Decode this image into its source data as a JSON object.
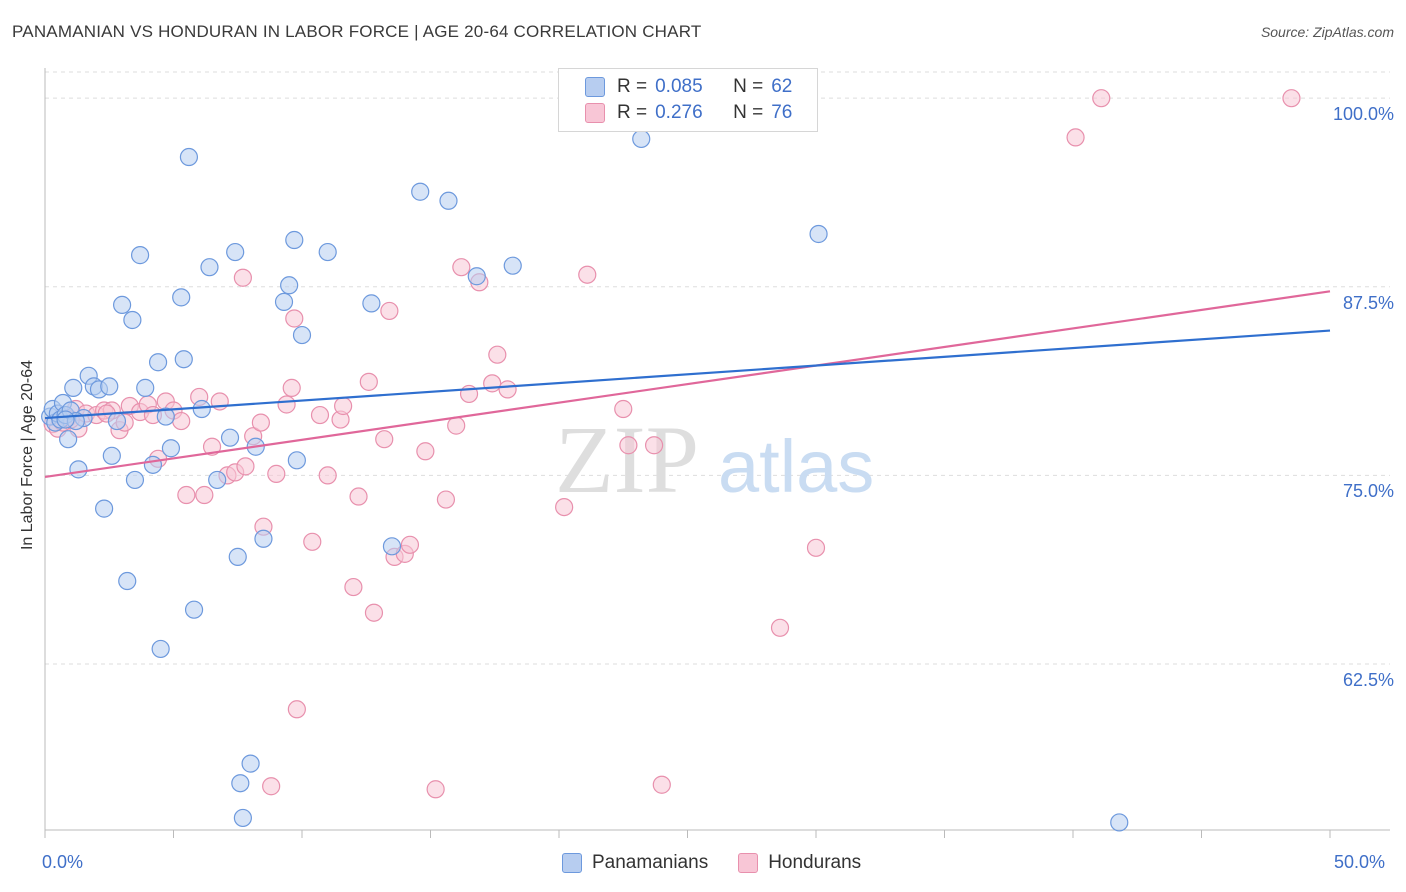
{
  "title": "PANAMANIAN VS HONDURAN IN LABOR FORCE | AGE 20-64 CORRELATION CHART",
  "source": "Source: ZipAtlas.com",
  "legend_top": {
    "rows": [
      {
        "r_label": "R =",
        "r_value": "0.085",
        "n_label": "N =",
        "n_value": "62"
      },
      {
        "r_label": "R =",
        "r_value": "0.276",
        "n_label": "N =",
        "n_value": "76"
      }
    ]
  },
  "legend_bottom": [
    "Panamanians",
    "Hondurans"
  ],
  "watermark": {
    "zip": "ZIP",
    "atlas": "atlas"
  },
  "colors": {
    "blue_fill": "#b7cdf0",
    "blue_stroke": "#6d99dd",
    "blue_line": "#2f6fcf",
    "pink_fill": "#f8c6d6",
    "pink_stroke": "#e890ad",
    "pink_line": "#e0679a",
    "tick_label": "#3f6fc8",
    "grid": "#dddddd"
  },
  "chart_data": {
    "type": "scatter",
    "title": "PANAMANIAN VS HONDURAN IN LABOR FORCE | AGE 20-64 CORRELATION CHART",
    "xlabel": "",
    "ylabel": "In Labor Force | Age 20-64",
    "xlim": [
      0,
      50
    ],
    "ylim": [
      51.5,
      102
    ],
    "x_tick_labels": [
      "0.0%",
      "50.0%"
    ],
    "y_ticks": [
      62.5,
      75.0,
      87.5,
      100.0
    ],
    "y_tick_labels": [
      "62.5%",
      "75.0%",
      "87.5%",
      "100.0%"
    ],
    "grid": "horizontal dashed",
    "legend_position": "top-center",
    "series": [
      {
        "name": "Panamanians",
        "stats": {
          "R": 0.085,
          "N": 62
        },
        "trend": {
          "x": [
            0,
            50
          ],
          "y": [
            78.8,
            84.6
          ]
        },
        "points": [
          [
            0.2,
            78.9
          ],
          [
            0.3,
            79.4
          ],
          [
            0.4,
            78.5
          ],
          [
            0.5,
            79.1
          ],
          [
            0.6,
            78.7
          ],
          [
            0.7,
            79.8
          ],
          [
            0.8,
            79.0
          ],
          [
            0.9,
            77.4
          ],
          [
            1.0,
            79.3
          ],
          [
            1.1,
            80.8
          ],
          [
            1.3,
            75.4
          ],
          [
            1.5,
            78.8
          ],
          [
            1.7,
            81.6
          ],
          [
            1.9,
            80.9
          ],
          [
            2.1,
            80.7
          ],
          [
            2.3,
            72.8
          ],
          [
            2.5,
            80.9
          ],
          [
            2.6,
            76.3
          ],
          [
            2.8,
            78.6
          ],
          [
            3.0,
            86.3
          ],
          [
            3.2,
            68.0
          ],
          [
            3.4,
            85.3
          ],
          [
            3.5,
            74.7
          ],
          [
            3.7,
            89.6
          ],
          [
            3.9,
            80.8
          ],
          [
            4.2,
            75.7
          ],
          [
            4.4,
            82.5
          ],
          [
            4.5,
            63.5
          ],
          [
            4.7,
            78.9
          ],
          [
            4.9,
            76.8
          ],
          [
            5.3,
            86.8
          ],
          [
            5.4,
            82.7
          ],
          [
            5.6,
            96.1
          ],
          [
            5.8,
            66.1
          ],
          [
            6.1,
            79.4
          ],
          [
            6.4,
            88.8
          ],
          [
            6.7,
            74.7
          ],
          [
            7.2,
            77.5
          ],
          [
            7.4,
            89.8
          ],
          [
            7.5,
            69.6
          ],
          [
            7.6,
            54.6
          ],
          [
            7.7,
            52.3
          ],
          [
            8.0,
            55.9
          ],
          [
            8.2,
            76.9
          ],
          [
            8.5,
            70.8
          ],
          [
            9.3,
            86.5
          ],
          [
            9.5,
            87.6
          ],
          [
            9.7,
            90.6
          ],
          [
            9.8,
            76.0
          ],
          [
            10.0,
            84.3
          ],
          [
            11.0,
            89.8
          ],
          [
            12.7,
            86.4
          ],
          [
            13.5,
            70.3
          ],
          [
            14.6,
            93.8
          ],
          [
            15.7,
            93.2
          ],
          [
            16.8,
            88.2
          ],
          [
            18.2,
            88.9
          ],
          [
            23.2,
            97.3
          ],
          [
            30.1,
            91.0
          ],
          [
            41.8,
            52.0
          ],
          [
            1.2,
            78.6
          ],
          [
            0.8,
            78.7
          ]
        ]
      },
      {
        "name": "Hondurans",
        "stats": {
          "R": 0.276,
          "N": 76
        },
        "trend": {
          "x": [
            0,
            50
          ],
          "y": [
            74.9,
            87.2
          ]
        },
        "points": [
          [
            0.3,
            78.4
          ],
          [
            0.5,
            78.1
          ],
          [
            0.7,
            78.5
          ],
          [
            0.9,
            78.8
          ],
          [
            1.2,
            79.4
          ],
          [
            1.3,
            78.1
          ],
          [
            1.6,
            79.1
          ],
          [
            2.0,
            79.0
          ],
          [
            2.3,
            79.3
          ],
          [
            2.6,
            79.3
          ],
          [
            2.9,
            78.0
          ],
          [
            3.1,
            78.5
          ],
          [
            3.3,
            79.6
          ],
          [
            3.7,
            79.2
          ],
          [
            4.0,
            79.7
          ],
          [
            4.2,
            79.0
          ],
          [
            4.4,
            76.1
          ],
          [
            4.7,
            79.9
          ],
          [
            5.0,
            79.3
          ],
          [
            5.3,
            78.6
          ],
          [
            5.5,
            73.7
          ],
          [
            6.0,
            80.2
          ],
          [
            6.2,
            73.7
          ],
          [
            6.5,
            76.9
          ],
          [
            6.8,
            79.9
          ],
          [
            7.1,
            75.0
          ],
          [
            7.4,
            75.2
          ],
          [
            7.7,
            88.1
          ],
          [
            7.8,
            75.6
          ],
          [
            8.1,
            77.6
          ],
          [
            8.4,
            78.5
          ],
          [
            8.5,
            71.6
          ],
          [
            8.8,
            54.4
          ],
          [
            9.0,
            75.1
          ],
          [
            9.4,
            79.7
          ],
          [
            9.6,
            80.8
          ],
          [
            9.7,
            85.4
          ],
          [
            9.8,
            59.5
          ],
          [
            10.4,
            70.6
          ],
          [
            10.7,
            79.0
          ],
          [
            11.0,
            75.0
          ],
          [
            11.5,
            78.7
          ],
          [
            11.6,
            79.6
          ],
          [
            12.0,
            67.6
          ],
          [
            12.2,
            73.6
          ],
          [
            12.6,
            81.2
          ],
          [
            12.8,
            65.9
          ],
          [
            13.2,
            77.4
          ],
          [
            13.4,
            85.9
          ],
          [
            13.6,
            69.6
          ],
          [
            14.0,
            69.8
          ],
          [
            14.2,
            70.4
          ],
          [
            14.8,
            76.6
          ],
          [
            15.2,
            54.2
          ],
          [
            15.6,
            73.4
          ],
          [
            16.0,
            78.3
          ],
          [
            16.2,
            88.8
          ],
          [
            16.5,
            80.4
          ],
          [
            16.9,
            87.8
          ],
          [
            17.4,
            81.1
          ],
          [
            17.6,
            83.0
          ],
          [
            18.0,
            80.7
          ],
          [
            20.2,
            72.9
          ],
          [
            21.1,
            88.3
          ],
          [
            22.5,
            79.4
          ],
          [
            22.7,
            77.0
          ],
          [
            23.7,
            77.0
          ],
          [
            24.0,
            54.5
          ],
          [
            26.0,
            98.5
          ],
          [
            28.6,
            64.9
          ],
          [
            30.0,
            70.2
          ],
          [
            40.1,
            97.4
          ],
          [
            41.1,
            100.0
          ],
          [
            48.5,
            100.0
          ],
          [
            1.0,
            78.7
          ],
          [
            2.4,
            79.1
          ]
        ]
      }
    ]
  }
}
